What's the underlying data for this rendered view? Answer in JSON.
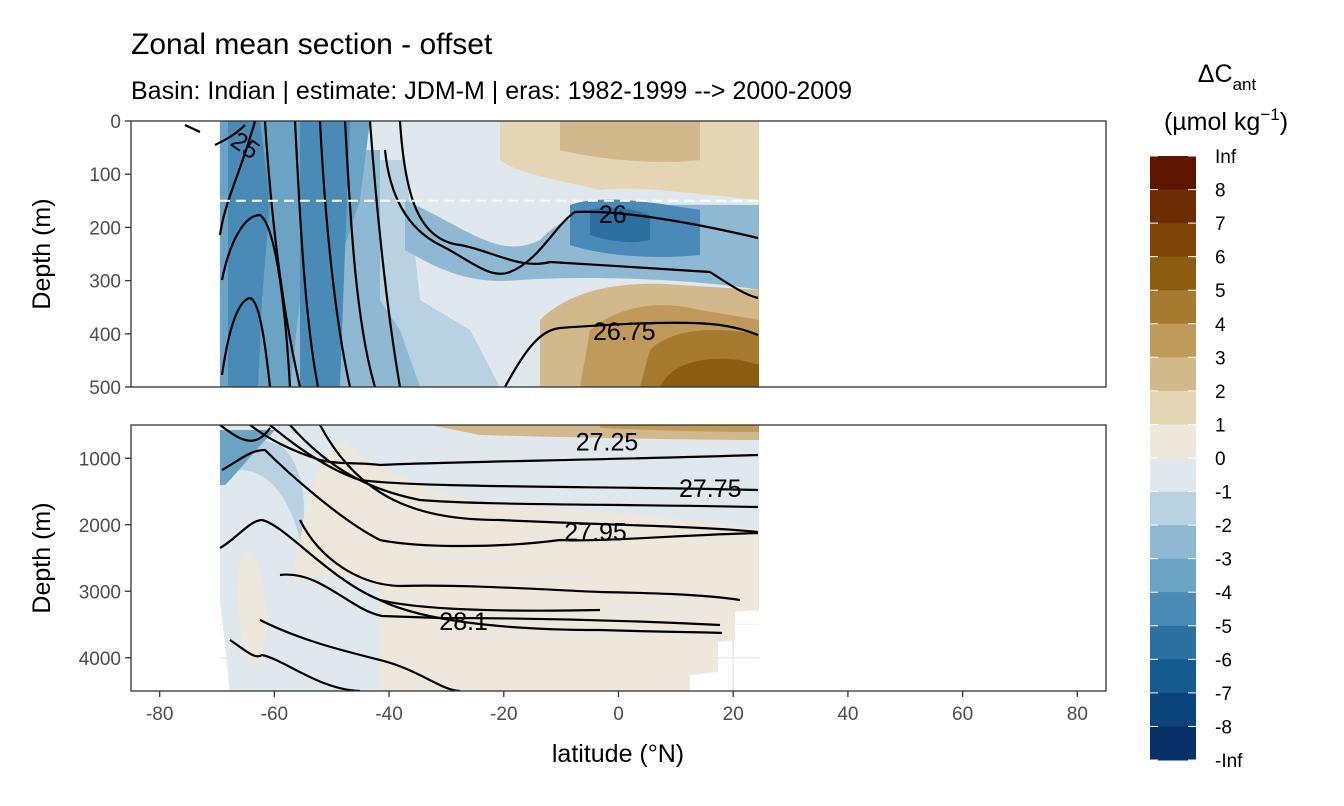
{
  "chart_data": {
    "type": "heatmap",
    "title": "Zonal mean section - offset",
    "subtitle": "Basin: Indian | estimate: JDM-M | eras: 1982-1999 --> 2000-2009",
    "xlabel": "latitude (°N)",
    "ylabel_top": "Depth (m)",
    "ylabel_bottom": "Depth (m)",
    "xlim": [
      -85,
      85
    ],
    "x_ticks": [
      -80,
      -60,
      -40,
      -20,
      0,
      20,
      40,
      60,
      80
    ],
    "x_tick_labels": [
      "-80",
      "-60",
      "-40",
      "-20",
      "0",
      "20",
      "40",
      "60",
      "80"
    ],
    "panels": [
      {
        "name": "upper",
        "ylim": [
          0,
          500
        ],
        "y_ticks": [
          0,
          100,
          200,
          300,
          400,
          500
        ],
        "y_tick_labels": [
          "0",
          "100",
          "200",
          "300",
          "400",
          "500"
        ],
        "reference_depth": 150,
        "data_lat_range": [
          -69.5,
          24.5
        ],
        "contour_labels": [
          {
            "text": "25",
            "lat": -65,
            "depth": 45,
            "angle": 35
          },
          {
            "text": "26",
            "lat": -1,
            "depth": 175,
            "angle": 0
          },
          {
            "text": "26.75",
            "lat": 1,
            "depth": 395,
            "angle": 0
          }
        ]
      },
      {
        "name": "lower",
        "ylim": [
          500,
          4500
        ],
        "y_ticks": [
          1000,
          2000,
          3000,
          4000
        ],
        "y_tick_labels": [
          "1000",
          "2000",
          "3000",
          "4000"
        ],
        "data_lat_range": [
          -69.5,
          24.5
        ],
        "contour_labels": [
          {
            "text": "27.25",
            "lat": -2,
            "depth": 750
          },
          {
            "text": "27.75",
            "lat": 16,
            "depth": 1450
          },
          {
            "text": "27.95",
            "lat": -4,
            "depth": 2100
          },
          {
            "text": "28.1",
            "lat": -27,
            "depth": 3450
          }
        ]
      }
    ],
    "legend": {
      "title": "ΔC",
      "title_sub": "ant",
      "unit_prefix": "(µmol kg",
      "unit_sup": "−1",
      "unit_suffix": ")",
      "breaks": [
        "Inf",
        "8",
        "7",
        "6",
        "5",
        "4",
        "3",
        "2",
        "1",
        "0",
        "-1",
        "-2",
        "-3",
        "-4",
        "-5",
        "-6",
        "-7",
        "-8",
        "-Inf"
      ],
      "colors": [
        "#5e1600",
        "#6e2c03",
        "#7e4506",
        "#8c5d11",
        "#a67b2f",
        "#bf9a5a",
        "#d2b98b",
        "#e4d5b4",
        "#eee8dc",
        "#dfe8ec",
        "#b9d2e1",
        "#8fb9d2",
        "#6ba3c4",
        "#4a8ab6",
        "#2c70a2",
        "#165b90",
        "#0b447b",
        "#072f68",
        "#041c58"
      ]
    }
  }
}
